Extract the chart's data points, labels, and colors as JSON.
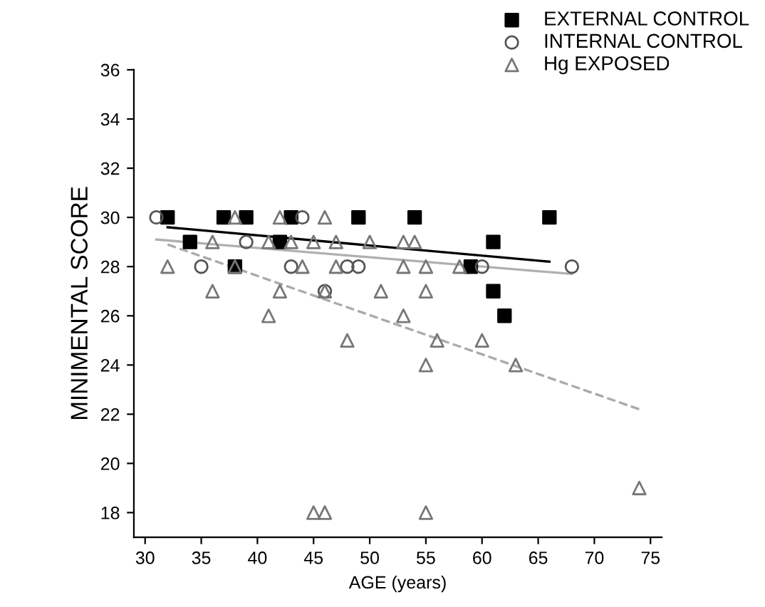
{
  "chart_data": {
    "type": "scatter",
    "xlabel": "AGE (years)",
    "ylabel": "MINIMENTAL SCORE",
    "xlim": [
      29,
      76
    ],
    "ylim": [
      17,
      36
    ],
    "xticks": [
      30,
      35,
      40,
      45,
      50,
      55,
      60,
      65,
      70,
      75
    ],
    "yticks": [
      18,
      20,
      22,
      24,
      26,
      28,
      30,
      32,
      34,
      36
    ],
    "grid": false,
    "legend": "top right",
    "series": [
      {
        "name": "EXTERNAL CONTROL",
        "color": "#000000",
        "marker": "square",
        "x": [
          32,
          34,
          37,
          38,
          39,
          42,
          43,
          49,
          54,
          59,
          61,
          61,
          62,
          66
        ],
        "values": [
          30,
          29,
          30,
          28,
          30,
          29,
          30,
          30,
          30,
          28,
          29,
          27,
          26,
          30
        ]
      },
      {
        "name": "INTERNAL CONTROL",
        "color": "#555555",
        "marker": "circle",
        "x": [
          31,
          35,
          39,
          43,
          44,
          46,
          48,
          49,
          60,
          68
        ],
        "values": [
          30,
          28,
          29,
          28,
          30,
          27,
          28,
          28,
          28,
          28
        ]
      },
      {
        "name": "Hg EXPOSED",
        "color": "#777777",
        "marker": "triangle",
        "x": [
          32,
          36,
          36,
          38,
          38,
          41,
          41,
          42,
          42,
          43,
          44,
          45,
          46,
          46,
          47,
          47,
          48,
          50,
          51,
          53,
          53,
          53,
          54,
          55,
          55,
          55,
          56,
          58,
          60,
          63,
          45,
          46,
          55,
          74
        ],
        "values": [
          28,
          29,
          27,
          30,
          28,
          29,
          26,
          30,
          27,
          29,
          28,
          29,
          30,
          27,
          29,
          28,
          25,
          29,
          27,
          29,
          28,
          26,
          29,
          28,
          27,
          24,
          25,
          28,
          25,
          24,
          18,
          18,
          18,
          19
        ]
      },
      {
        "type": "line",
        "color": "#000000",
        "line_style": "solid",
        "x": [
          32,
          66
        ],
        "values": [
          29.6,
          28.2
        ]
      },
      {
        "type": "line",
        "color": "#b0b0b0",
        "line_style": "solid",
        "x": [
          31,
          68
        ],
        "values": [
          29.1,
          27.7
        ]
      },
      {
        "type": "line",
        "color": "#aaaaaa",
        "line_style": "dashed",
        "x": [
          32,
          74
        ],
        "values": [
          28.9,
          22.2
        ]
      }
    ]
  }
}
